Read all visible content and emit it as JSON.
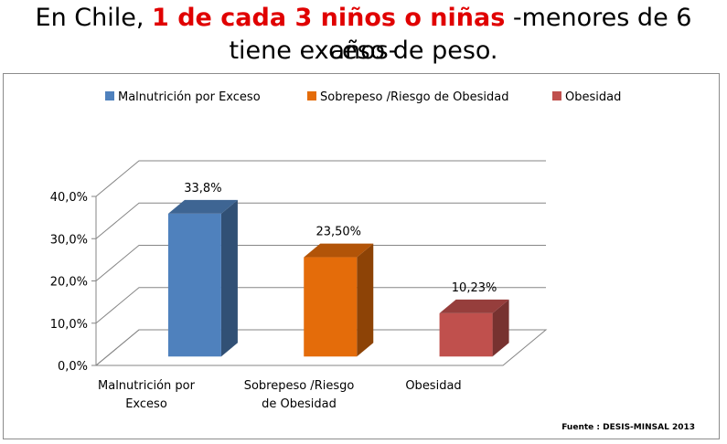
{
  "title": {
    "prefix": "En Chile, ",
    "highlight": "1 de cada 3 niños o niñas",
    "suffix": " -menores de 6 años-",
    "line2": "tiene exceso de peso."
  },
  "source": "Fuente : DESIS-MINSAL 2013",
  "colors": {
    "highlight": "#e00000",
    "series": [
      "#4f81bd",
      "#e46c0a",
      "#c0504d"
    ]
  },
  "chart_data": {
    "type": "bar",
    "categories": [
      "Malnutrición por Exceso",
      "Sobrepeso /Riesgo de Obesidad",
      "Obesidad"
    ],
    "category_lines": [
      [
        "Malnutrición por",
        "Exceso"
      ],
      [
        "Sobrepeso /Riesgo",
        "de Obesidad"
      ],
      [
        "Obesidad"
      ]
    ],
    "series": [
      {
        "name": "Malnutrición por Exceso",
        "values": [
          33.8,
          null,
          null
        ]
      },
      {
        "name": "Sobrepeso /Riesgo de Obesidad",
        "values": [
          null,
          23.5,
          null
        ]
      },
      {
        "name": "Obesidad",
        "values": [
          null,
          null,
          10.23
        ]
      }
    ],
    "values": [
      33.8,
      23.5,
      10.23
    ],
    "data_labels": [
      "33,8%",
      "23,50%",
      "10,23%"
    ],
    "ylim": [
      0,
      40
    ],
    "yticks": [
      0,
      10,
      20,
      30,
      40
    ],
    "ytick_labels": [
      "0,0%",
      "10,0%",
      "20,0%",
      "30,0%",
      "40,0%"
    ],
    "grid": true,
    "three_d": true,
    "legend_position": "top"
  }
}
